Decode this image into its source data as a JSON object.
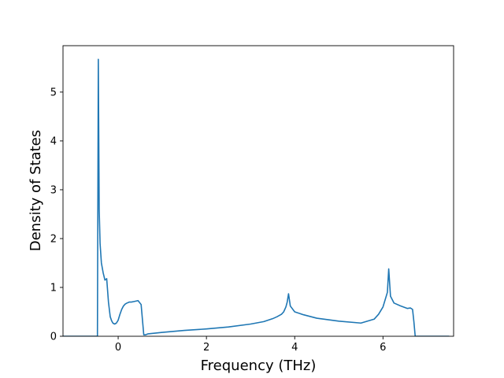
{
  "chart_data": {
    "type": "line",
    "title": "",
    "xlabel": "Frequency (THz)",
    "ylabel": "Density of States",
    "xlim": [
      -1.25,
      7.6
    ],
    "ylim": [
      0,
      5.95
    ],
    "xticks": [
      0,
      2,
      4,
      6
    ],
    "xtick_labels": [
      "0",
      "2",
      "4",
      "6"
    ],
    "yticks": [
      0,
      1,
      2,
      3,
      4,
      5
    ],
    "ytick_labels": [
      "0",
      "1",
      "2",
      "3",
      "4",
      "5"
    ],
    "grid": false,
    "legend": "none",
    "series": [
      {
        "color": "#1f77b4",
        "x": [
          -1.25,
          -0.5,
          -0.47,
          -0.45,
          -0.43,
          -0.41,
          -0.38,
          -0.34,
          -0.3,
          -0.26,
          -0.22,
          -0.18,
          -0.15,
          -0.12,
          -0.08,
          -0.04,
          0.0,
          0.04,
          0.08,
          0.12,
          0.16,
          0.2,
          0.25,
          0.3,
          0.35,
          0.4,
          0.45,
          0.52,
          0.58,
          0.62,
          0.65,
          0.68,
          1.0,
          1.5,
          2.0,
          2.5,
          3.0,
          3.3,
          3.5,
          3.6,
          3.7,
          3.75,
          3.8,
          3.83,
          3.86,
          3.9,
          4.0,
          4.2,
          4.5,
          5.0,
          5.5,
          5.8,
          5.9,
          6.0,
          6.05,
          6.1,
          6.13,
          6.17,
          6.25,
          6.4,
          6.55,
          6.62,
          6.67,
          6.7,
          6.73,
          6.75,
          6.78,
          7.5
        ],
        "values": [
          0,
          0,
          0,
          5.67,
          2.6,
          1.9,
          1.5,
          1.3,
          1.15,
          1.18,
          0.7,
          0.4,
          0.32,
          0.27,
          0.25,
          0.27,
          0.33,
          0.45,
          0.55,
          0.62,
          0.66,
          0.68,
          0.7,
          0.7,
          0.71,
          0.72,
          0.73,
          0.65,
          0.03,
          0.03,
          0.04,
          0.05,
          0.08,
          0.12,
          0.15,
          0.19,
          0.25,
          0.3,
          0.36,
          0.4,
          0.45,
          0.5,
          0.6,
          0.7,
          0.87,
          0.62,
          0.5,
          0.44,
          0.37,
          0.31,
          0.27,
          0.35,
          0.45,
          0.6,
          0.75,
          0.9,
          1.38,
          0.82,
          0.68,
          0.62,
          0.57,
          0.58,
          0.55,
          0.3,
          0,
          0,
          0,
          0
        ]
      }
    ]
  }
}
